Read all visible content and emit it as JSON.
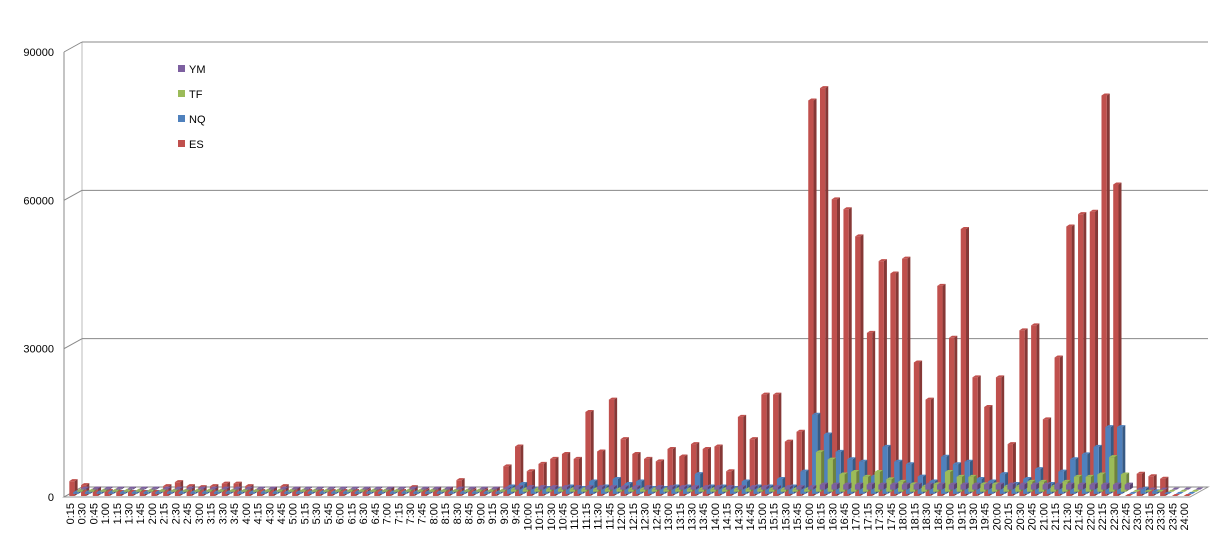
{
  "chart_data": {
    "type": "bar3d",
    "categories": [
      "0:15",
      "0:30",
      "0:45",
      "1:00",
      "1:15",
      "1:30",
      "1:45",
      "2:00",
      "2:15",
      "2:30",
      "2:45",
      "3:00",
      "3:15",
      "3:30",
      "3:45",
      "4:00",
      "4:15",
      "4:30",
      "4:45",
      "5:00",
      "5:15",
      "5:30",
      "5:45",
      "6:00",
      "6:15",
      "6:30",
      "6:45",
      "7:00",
      "7:15",
      "7:30",
      "7:45",
      "8:00",
      "8:15",
      "8:30",
      "8:45",
      "9:00",
      "9:15",
      "9:30",
      "9:45",
      "10:00",
      "10:15",
      "10:30",
      "10:45",
      "11:00",
      "11:15",
      "11:30",
      "11:45",
      "12:00",
      "12:15",
      "12:30",
      "12:45",
      "13:00",
      "13:15",
      "13:30",
      "13:45",
      "14:00",
      "14:15",
      "14:30",
      "14:45",
      "15:00",
      "15:15",
      "15:30",
      "15:45",
      "16:00",
      "16:15",
      "16:30",
      "16:45",
      "17:00",
      "17:15",
      "17:30",
      "17:45",
      "18:00",
      "18:15",
      "18:30",
      "18:45",
      "19:00",
      "19:15",
      "19:30",
      "19:45",
      "20:00",
      "20:15",
      "20:30",
      "20:45",
      "21:00",
      "21:15",
      "21:30",
      "21:45",
      "22:00",
      "22:15",
      "22:30",
      "22:45",
      "23:00",
      "23:15",
      "23:30",
      "23:45",
      "24:00"
    ],
    "series": [
      {
        "name": "YM",
        "color": "#7d60a0",
        "values": [
          200,
          200,
          200,
          200,
          200,
          200,
          200,
          200,
          200,
          200,
          200,
          200,
          200,
          200,
          200,
          200,
          200,
          200,
          200,
          200,
          200,
          200,
          200,
          200,
          200,
          200,
          200,
          200,
          200,
          200,
          200,
          200,
          200,
          200,
          200,
          200,
          200,
          500,
          500,
          500,
          500,
          500,
          500,
          500,
          500,
          500,
          500,
          500,
          500,
          500,
          500,
          500,
          500,
          500,
          500,
          500,
          500,
          500,
          500,
          500,
          500,
          500,
          500,
          1000,
          1000,
          1000,
          1000,
          1000,
          1000,
          1000,
          1000,
          1000,
          1000,
          1000,
          1000,
          1000,
          1000,
          1000,
          1000,
          1000,
          1000,
          1000,
          1000,
          1000,
          1000,
          1000,
          1000,
          1000,
          1000,
          1000,
          0,
          0,
          0,
          0,
          0,
          0
        ]
      },
      {
        "name": "TF",
        "color": "#9bbb59",
        "values": [
          200,
          200,
          200,
          200,
          200,
          200,
          200,
          200,
          200,
          200,
          200,
          200,
          200,
          200,
          200,
          200,
          200,
          200,
          200,
          200,
          200,
          200,
          200,
          200,
          200,
          200,
          200,
          200,
          200,
          200,
          200,
          200,
          200,
          200,
          200,
          200,
          200,
          500,
          500,
          500,
          500,
          500,
          500,
          500,
          500,
          500,
          500,
          500,
          500,
          500,
          500,
          500,
          500,
          500,
          500,
          500,
          500,
          500,
          500,
          500,
          500,
          500,
          500,
          8000,
          6500,
          3500,
          4000,
          3000,
          4000,
          2500,
          2000,
          1500,
          1000,
          1500,
          4000,
          3000,
          3000,
          1500,
          1500,
          1000,
          1000,
          2000,
          2000,
          1000,
          2000,
          3000,
          3000,
          3500,
          7000,
          3500,
          0,
          0,
          0,
          0,
          0,
          0
        ]
      },
      {
        "name": "NQ",
        "color": "#4f81bd",
        "values": [
          300,
          300,
          300,
          300,
          300,
          300,
          300,
          300,
          300,
          300,
          300,
          300,
          300,
          300,
          300,
          300,
          300,
          300,
          300,
          300,
          300,
          300,
          300,
          300,
          300,
          300,
          300,
          300,
          300,
          300,
          300,
          300,
          300,
          300,
          300,
          300,
          300,
          1500,
          2000,
          1000,
          1200,
          1000,
          1500,
          1200,
          2500,
          1500,
          3000,
          2000,
          2500,
          1200,
          1200,
          1500,
          1500,
          4000,
          1500,
          1500,
          1200,
          2500,
          1500,
          1500,
          3000,
          1500,
          4500,
          16000,
          12000,
          8500,
          7000,
          6500,
          3500,
          9500,
          6500,
          6000,
          3500,
          2500,
          7500,
          6000,
          6500,
          3000,
          2500,
          4000,
          2000,
          3000,
          5000,
          2000,
          4500,
          7000,
          8000,
          9500,
          13500,
          13500,
          0,
          1000,
          500,
          0,
          0,
          0
        ]
      },
      {
        "name": "ES",
        "color": "#c0504d",
        "values": [
          3000,
          2200,
          1500,
          1000,
          800,
          800,
          800,
          800,
          2000,
          2800,
          2000,
          1800,
          2000,
          2500,
          2500,
          2000,
          1000,
          1500,
          2000,
          1500,
          1000,
          1000,
          1000,
          1000,
          1000,
          1200,
          1000,
          1500,
          1000,
          1800,
          1200,
          1500,
          1500,
          3200,
          1200,
          1200,
          1500,
          6000,
          10000,
          5000,
          6500,
          7500,
          8500,
          7500,
          17000,
          9000,
          19500,
          11500,
          8500,
          7500,
          7000,
          9500,
          8000,
          10500,
          9500,
          10000,
          5000,
          16000,
          11500,
          20500,
          20500,
          11000,
          13000,
          80000,
          82500,
          60000,
          58000,
          52500,
          33000,
          47500,
          45000,
          48000,
          27000,
          19500,
          42500,
          32000,
          54000,
          24000,
          18000,
          24000,
          10500,
          33500,
          34500,
          15500,
          28000,
          54500,
          57000,
          57500,
          81000,
          63000,
          0,
          4500,
          4000,
          3500,
          0,
          0
        ]
      }
    ],
    "ylim": [
      0,
      90000
    ],
    "yticks": [
      0,
      30000,
      60000,
      90000
    ],
    "grid": true,
    "legend": "top-left"
  }
}
